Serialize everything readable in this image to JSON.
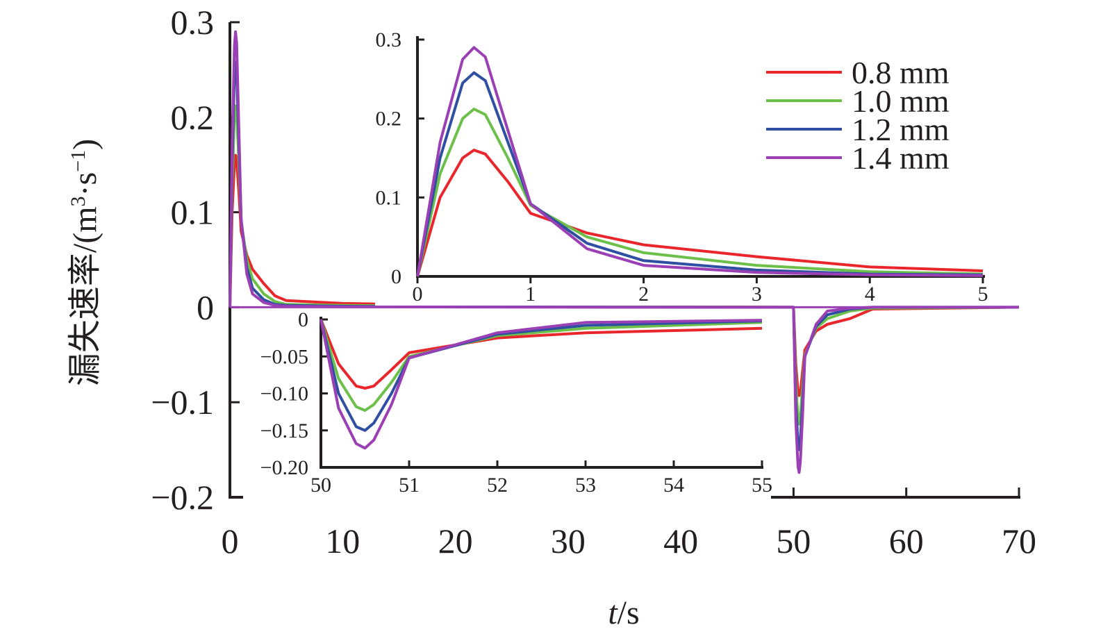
{
  "chart_data": {
    "type": "line",
    "xlabel_italic": "t",
    "xlabel_unit": "/s",
    "ylabel_text": "漏失速率/(m",
    "ylabel_sup1": "3",
    "ylabel_mid": "·s",
    "ylabel_sup2": "−1",
    "ylabel_end": ")",
    "xlim": [
      0,
      70
    ],
    "ylim": [
      -0.2,
      0.3
    ],
    "xticks": [
      0,
      10,
      20,
      30,
      40,
      50,
      60,
      70
    ],
    "xtick_labels": [
      "0",
      "10",
      "20",
      "30",
      "40",
      "50",
      "60",
      "70"
    ],
    "yticks": [
      -0.2,
      -0.1,
      0,
      0.1,
      0.2,
      0.3
    ],
    "ytick_labels": [
      "−0.2",
      "−0.1",
      "0",
      "0.1",
      "0.2",
      "0.3"
    ],
    "series": [
      {
        "name": "0.8 mm",
        "color": "#e8262b",
        "x": [
          0,
          0.2,
          0.4,
          0.5,
          0.6,
          0.8,
          1.0,
          1.5,
          2,
          3,
          4,
          5,
          10,
          20,
          30,
          40,
          50,
          50.2,
          50.4,
          50.5,
          50.6,
          50.8,
          51,
          52,
          53,
          55,
          57,
          70
        ],
        "y": [
          0,
          0.1,
          0.15,
          0.16,
          0.155,
          0.12,
          0.08,
          0.055,
          0.04,
          0.025,
          0.012,
          0.007,
          0.004,
          0.002,
          0.001,
          0.0005,
          0,
          -0.06,
          -0.09,
          -0.093,
          -0.09,
          -0.068,
          -0.045,
          -0.025,
          -0.018,
          -0.012,
          -0.002,
          0
        ]
      },
      {
        "name": "1.0 mm",
        "color": "#6cc04a",
        "x": [
          0,
          0.2,
          0.4,
          0.5,
          0.6,
          0.8,
          1.0,
          1.5,
          2,
          3,
          4,
          5,
          10,
          20,
          30,
          40,
          50,
          50.2,
          50.4,
          50.5,
          50.6,
          50.8,
          51,
          52,
          53,
          55,
          57,
          70
        ],
        "y": [
          0,
          0.13,
          0.2,
          0.212,
          0.205,
          0.15,
          0.09,
          0.05,
          0.03,
          0.014,
          0.006,
          0.003,
          0.002,
          0.001,
          0.0005,
          0.0002,
          0,
          -0.08,
          -0.118,
          -0.123,
          -0.115,
          -0.085,
          -0.05,
          -0.022,
          -0.012,
          -0.004,
          -0.001,
          0
        ]
      },
      {
        "name": "1.2 mm",
        "color": "#2f4fa2",
        "x": [
          0,
          0.2,
          0.4,
          0.5,
          0.6,
          0.8,
          1.0,
          1.5,
          2,
          3,
          4,
          5,
          10,
          20,
          30,
          40,
          50,
          50.2,
          50.4,
          50.5,
          50.6,
          50.8,
          51,
          52,
          53,
          55,
          57,
          70
        ],
        "y": [
          0,
          0.15,
          0.245,
          0.258,
          0.248,
          0.17,
          0.092,
          0.042,
          0.02,
          0.008,
          0.003,
          0.002,
          0.001,
          0.0005,
          0.0002,
          0.0001,
          0,
          -0.1,
          -0.145,
          -0.15,
          -0.14,
          -0.1,
          -0.052,
          -0.02,
          -0.008,
          -0.002,
          0,
          0
        ]
      },
      {
        "name": "1.4 mm",
        "color": "#9b3fb5",
        "x": [
          0,
          0.2,
          0.4,
          0.5,
          0.6,
          0.8,
          1.0,
          1.5,
          2,
          3,
          4,
          5,
          10,
          20,
          30,
          40,
          50,
          50.2,
          50.4,
          50.5,
          50.6,
          50.8,
          51,
          52,
          53,
          55,
          57,
          70
        ],
        "y": [
          0,
          0.17,
          0.275,
          0.29,
          0.278,
          0.185,
          0.092,
          0.035,
          0.014,
          0.005,
          0.002,
          0.001,
          0.0005,
          0.0002,
          0.0001,
          0,
          0,
          -0.12,
          -0.168,
          -0.174,
          -0.163,
          -0.115,
          -0.052,
          -0.018,
          -0.004,
          -0.001,
          0,
          0
        ]
      }
    ],
    "inset_positive": {
      "xlim": [
        0,
        5
      ],
      "ylim": [
        0,
        0.3
      ],
      "xticks": [
        0,
        1,
        2,
        3,
        4,
        5
      ],
      "xtick_labels": [
        "0",
        "1",
        "2",
        "3",
        "4",
        "5"
      ],
      "yticks": [
        0,
        0.1,
        0.2,
        0.3
      ],
      "ytick_labels": [
        "0",
        "0.1",
        "0.2",
        "0.3"
      ]
    },
    "inset_negative": {
      "xlim": [
        50,
        55
      ],
      "ylim": [
        -0.2,
        0
      ],
      "xticks": [
        50,
        51,
        52,
        53,
        54,
        55
      ],
      "xtick_labels": [
        "50",
        "51",
        "52",
        "53",
        "54",
        "55"
      ],
      "yticks": [
        -0.2,
        -0.15,
        -0.1,
        -0.05,
        0
      ],
      "ytick_labels": [
        "−0.20",
        "−0.15",
        "−0.10",
        "−0.05",
        "0"
      ]
    },
    "legend": [
      "0.8 mm",
      "1.0 mm",
      "1.2 mm",
      "1.4 mm"
    ],
    "legend_position": "top-right",
    "grid": false
  }
}
